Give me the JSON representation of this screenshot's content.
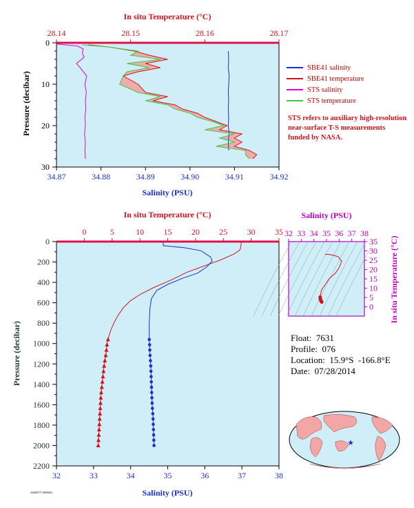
{
  "legend": {
    "items": [
      {
        "label": "SBE41 salinity",
        "color": "#1a2fd0"
      },
      {
        "label": "SBE41 temperature",
        "color": "#d0141a"
      },
      {
        "label": "STS salinity",
        "color": "#e000e0"
      },
      {
        "label": "STS temperature",
        "color": "#3cc83c"
      }
    ]
  },
  "note": "STS refers to auxiliary high-resolution near-surface T-S measurements funded by NASA.",
  "info": {
    "float": "Float:  7631",
    "profile": "Profile:  076",
    "location": "Location:  15.9°S  -166.8°E",
    "date": "Date:  07/28/2014"
  },
  "footer_id": "A0000777.0000004",
  "colors": {
    "panel_bg": "#cfeef8",
    "temp": "#d0141a",
    "sal": "#1a2fd0",
    "sts_sal": "#e000e0",
    "sts_temp": "#3cc83c",
    "sts_temp_fill": "#f4a0a0",
    "axis_dark": "#1e3a1e",
    "magenta": "#c000c0"
  },
  "chart_data": [
    {
      "type": "line",
      "name": "near-surface",
      "top_axis": {
        "label": "In situ Temperature (°C)",
        "range": [
          28.14,
          28.17
        ],
        "ticks": [
          "28.14",
          "28.15",
          "28.16",
          "28.17"
        ]
      },
      "bottom_axis": {
        "label": "Salinity (PSU)",
        "range": [
          34.87,
          34.92
        ],
        "ticks": [
          "34.87",
          "34.88",
          "34.89",
          "34.90",
          "34.91",
          "34.92"
        ]
      },
      "y_axis": {
        "label": "Pressure (decibar)",
        "range": [
          0,
          30
        ],
        "inverted": true,
        "ticks": [
          "0",
          "10",
          "20",
          "30"
        ]
      },
      "series": [
        {
          "name": "SBE41 salinity",
          "axis": "salinity",
          "points": [
            [
              34.9086,
              2
            ],
            [
              34.9087,
              4
            ],
            [
              34.9086,
              6
            ],
            [
              34.9088,
              8
            ],
            [
              34.9087,
              10
            ],
            [
              34.9086,
              12
            ],
            [
              34.9087,
              14
            ],
            [
              34.9086,
              16
            ],
            [
              34.9087,
              18
            ],
            [
              34.9086,
              20
            ],
            [
              34.9088,
              22
            ],
            [
              34.9086,
              24
            ],
            [
              34.9087,
              26
            ]
          ]
        },
        {
          "name": "SBE41 temperature",
          "axis": "temperature",
          "points": [
            [
              28.1443,
              0.5
            ],
            [
              28.147,
              1
            ],
            [
              28.1505,
              2
            ],
            [
              28.1525,
              3
            ],
            [
              28.155,
              4
            ],
            [
              28.152,
              5
            ],
            [
              28.154,
              6
            ],
            [
              28.151,
              7
            ],
            [
              28.149,
              8
            ],
            [
              28.151,
              10
            ],
            [
              28.152,
              12
            ],
            [
              28.155,
              13
            ],
            [
              28.153,
              14
            ],
            [
              28.156,
              15
            ],
            [
              28.157,
              16
            ],
            [
              28.159,
              17
            ],
            [
              28.16,
              18
            ],
            [
              28.1615,
              19
            ],
            [
              28.163,
              20
            ],
            [
              28.162,
              21
            ],
            [
              28.165,
              22
            ],
            [
              28.164,
              23
            ],
            [
              28.165,
              24
            ],
            [
              28.164,
              25
            ],
            [
              28.166,
              26
            ],
            [
              28.167,
              27
            ],
            [
              28.1665,
              28
            ]
          ]
        },
        {
          "name": "STS salinity",
          "axis": "salinity",
          "points": [
            [
              34.87,
              0.3
            ],
            [
              34.8748,
              0.8
            ],
            [
              34.876,
              1.5
            ],
            [
              34.8758,
              2.5
            ],
            [
              34.8762,
              3.5
            ],
            [
              34.8745,
              5
            ],
            [
              34.8753,
              6
            ],
            [
              34.8768,
              8
            ],
            [
              34.8764,
              10
            ],
            [
              34.8767,
              12
            ],
            [
              34.8765,
              14
            ],
            [
              34.8766,
              16
            ],
            [
              34.8764,
              18
            ],
            [
              34.8765,
              20
            ],
            [
              34.8763,
              22
            ],
            [
              34.8765,
              24
            ],
            [
              34.8764,
              26
            ],
            [
              34.8765,
              28
            ]
          ]
        },
        {
          "name": "STS temperature",
          "axis": "temperature",
          "points": [
            [
              28.1435,
              0.5
            ],
            [
              28.147,
              1
            ],
            [
              28.151,
              2
            ],
            [
              28.15,
              3
            ],
            [
              28.154,
              4
            ],
            [
              28.1495,
              5
            ],
            [
              28.1525,
              6
            ],
            [
              28.1495,
              7
            ],
            [
              28.149,
              8
            ],
            [
              28.1485,
              10
            ],
            [
              28.151,
              12
            ],
            [
              28.154,
              13
            ],
            [
              28.152,
              14
            ],
            [
              28.155,
              15
            ],
            [
              28.156,
              16
            ],
            [
              28.158,
              17
            ],
            [
              28.159,
              18
            ],
            [
              28.161,
              19
            ],
            [
              28.1625,
              20
            ],
            [
              28.16,
              21
            ],
            [
              28.164,
              22
            ],
            [
              28.162,
              23
            ],
            [
              28.164,
              24
            ],
            [
              28.1615,
              25
            ],
            [
              28.1655,
              26
            ],
            [
              28.1655,
              27
            ],
            [
              28.166,
              28
            ]
          ]
        }
      ]
    },
    {
      "type": "line",
      "name": "full-depth",
      "top_axis": {
        "label": "In situ Temperature (°C)",
        "range": [
          -5,
          35
        ],
        "ticks": [
          "0",
          "5",
          "10",
          "15",
          "20",
          "25",
          "30",
          "35"
        ]
      },
      "bottom_axis": {
        "label": "Salinity (PSU)",
        "range": [
          32,
          38
        ],
        "ticks": [
          "32",
          "33",
          "34",
          "35",
          "36",
          "37",
          "38"
        ]
      },
      "y_axis": {
        "label": "Pressure (decibar)",
        "range": [
          0,
          2200
        ],
        "inverted": true,
        "ticks": [
          "0",
          "200",
          "400",
          "600",
          "800",
          "1000",
          "1200",
          "1400",
          "1600",
          "1800",
          "2000",
          "2200"
        ]
      },
      "series": [
        {
          "name": "Temperature",
          "axis": "temperature",
          "points": [
            [
              28.2,
              0
            ],
            [
              28.2,
              30
            ],
            [
              28.0,
              80
            ],
            [
              27.0,
              120
            ],
            [
              24.5,
              180
            ],
            [
              21.5,
              240
            ],
            [
              18.5,
              300
            ],
            [
              15.5,
              380
            ],
            [
              12.5,
              450
            ],
            [
              10.0,
              520
            ],
            [
              8.3,
              580
            ],
            [
              7.0,
              650
            ],
            [
              6.0,
              730
            ],
            [
              5.3,
              800
            ],
            [
              4.7,
              880
            ],
            [
              4.3,
              950
            ],
            [
              4.1,
              1000
            ],
            [
              3.9,
              1100
            ],
            [
              3.6,
              1200
            ],
            [
              3.4,
              1300
            ],
            [
              3.2,
              1400
            ],
            [
              3.0,
              1500
            ],
            [
              2.9,
              1600
            ],
            [
              2.8,
              1700
            ],
            [
              2.7,
              1800
            ],
            [
              2.6,
              1900
            ],
            [
              2.5,
              2000
            ]
          ]
        },
        {
          "name": "Salinity",
          "axis": "salinity",
          "points": [
            [
              34.88,
              0
            ],
            [
              34.88,
              40
            ],
            [
              35.45,
              60
            ],
            [
              35.9,
              90
            ],
            [
              36.15,
              150
            ],
            [
              36.2,
              190
            ],
            [
              36.05,
              250
            ],
            [
              35.8,
              310
            ],
            [
              35.4,
              360
            ],
            [
              35.0,
              420
            ],
            [
              34.7,
              480
            ],
            [
              34.56,
              560
            ],
            [
              34.52,
              650
            ],
            [
              34.5,
              800
            ],
            [
              34.5,
              950
            ],
            [
              34.51,
              1000
            ],
            [
              34.52,
              1100
            ],
            [
              34.54,
              1200
            ],
            [
              34.55,
              1300
            ],
            [
              34.56,
              1400
            ],
            [
              34.57,
              1500
            ],
            [
              34.58,
              1600
            ],
            [
              34.6,
              1700
            ],
            [
              34.61,
              1800
            ],
            [
              34.62,
              1900
            ],
            [
              34.63,
              2000
            ]
          ]
        }
      ]
    },
    {
      "type": "scatter",
      "name": "T-S diagram",
      "top_axis": {
        "label": "Salinity (PSU)",
        "range": [
          32,
          38
        ],
        "ticks": [
          "32",
          "33",
          "34",
          "35",
          "36",
          "37",
          "38"
        ]
      },
      "right_axis": {
        "label": "In situ Temperature (°C)",
        "range": [
          -5,
          35
        ],
        "ticks": [
          "0",
          "5",
          "10",
          "15",
          "20",
          "25",
          "30",
          "35"
        ]
      },
      "points": [
        [
          34.88,
          28.2
        ],
        [
          35.3,
          28.0
        ],
        [
          35.9,
          27.0
        ],
        [
          36.2,
          24.5
        ],
        [
          36.0,
          21.0
        ],
        [
          35.7,
          18.0
        ],
        [
          35.2,
          15.0
        ],
        [
          34.9,
          12.0
        ],
        [
          34.6,
          9.0
        ],
        [
          34.52,
          6.5
        ],
        [
          34.5,
          5.2
        ],
        [
          34.51,
          4.2
        ],
        [
          34.55,
          3.5
        ],
        [
          34.58,
          3.0
        ],
        [
          34.62,
          2.6
        ]
      ]
    }
  ]
}
